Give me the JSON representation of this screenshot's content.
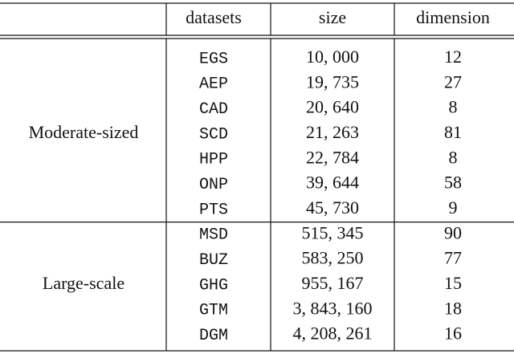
{
  "table": {
    "header": [
      "datasets",
      "size",
      "dimension"
    ],
    "groups": [
      {
        "label": "Moderate-sized",
        "rows": [
          [
            "EGS",
            "10, 000",
            "12"
          ],
          [
            "AEP",
            "19, 735",
            "27"
          ],
          [
            "CAD",
            "20, 640",
            "8"
          ],
          [
            "SCD",
            "21, 263",
            "81"
          ],
          [
            "HPP",
            "22, 784",
            "8"
          ],
          [
            "ONP",
            "39, 644",
            "58"
          ],
          [
            "PTS",
            "45, 730",
            "9"
          ]
        ]
      },
      {
        "label": "Large-scale",
        "rows": [
          [
            "MSD",
            "515, 345",
            "90"
          ],
          [
            "BUZ",
            "583, 250",
            "77"
          ],
          [
            "GHG",
            "955, 167",
            "15"
          ],
          [
            "GTM",
            "3, 843, 160",
            "18"
          ],
          [
            "DGM",
            "4, 208, 261",
            "16"
          ]
        ]
      }
    ]
  }
}
